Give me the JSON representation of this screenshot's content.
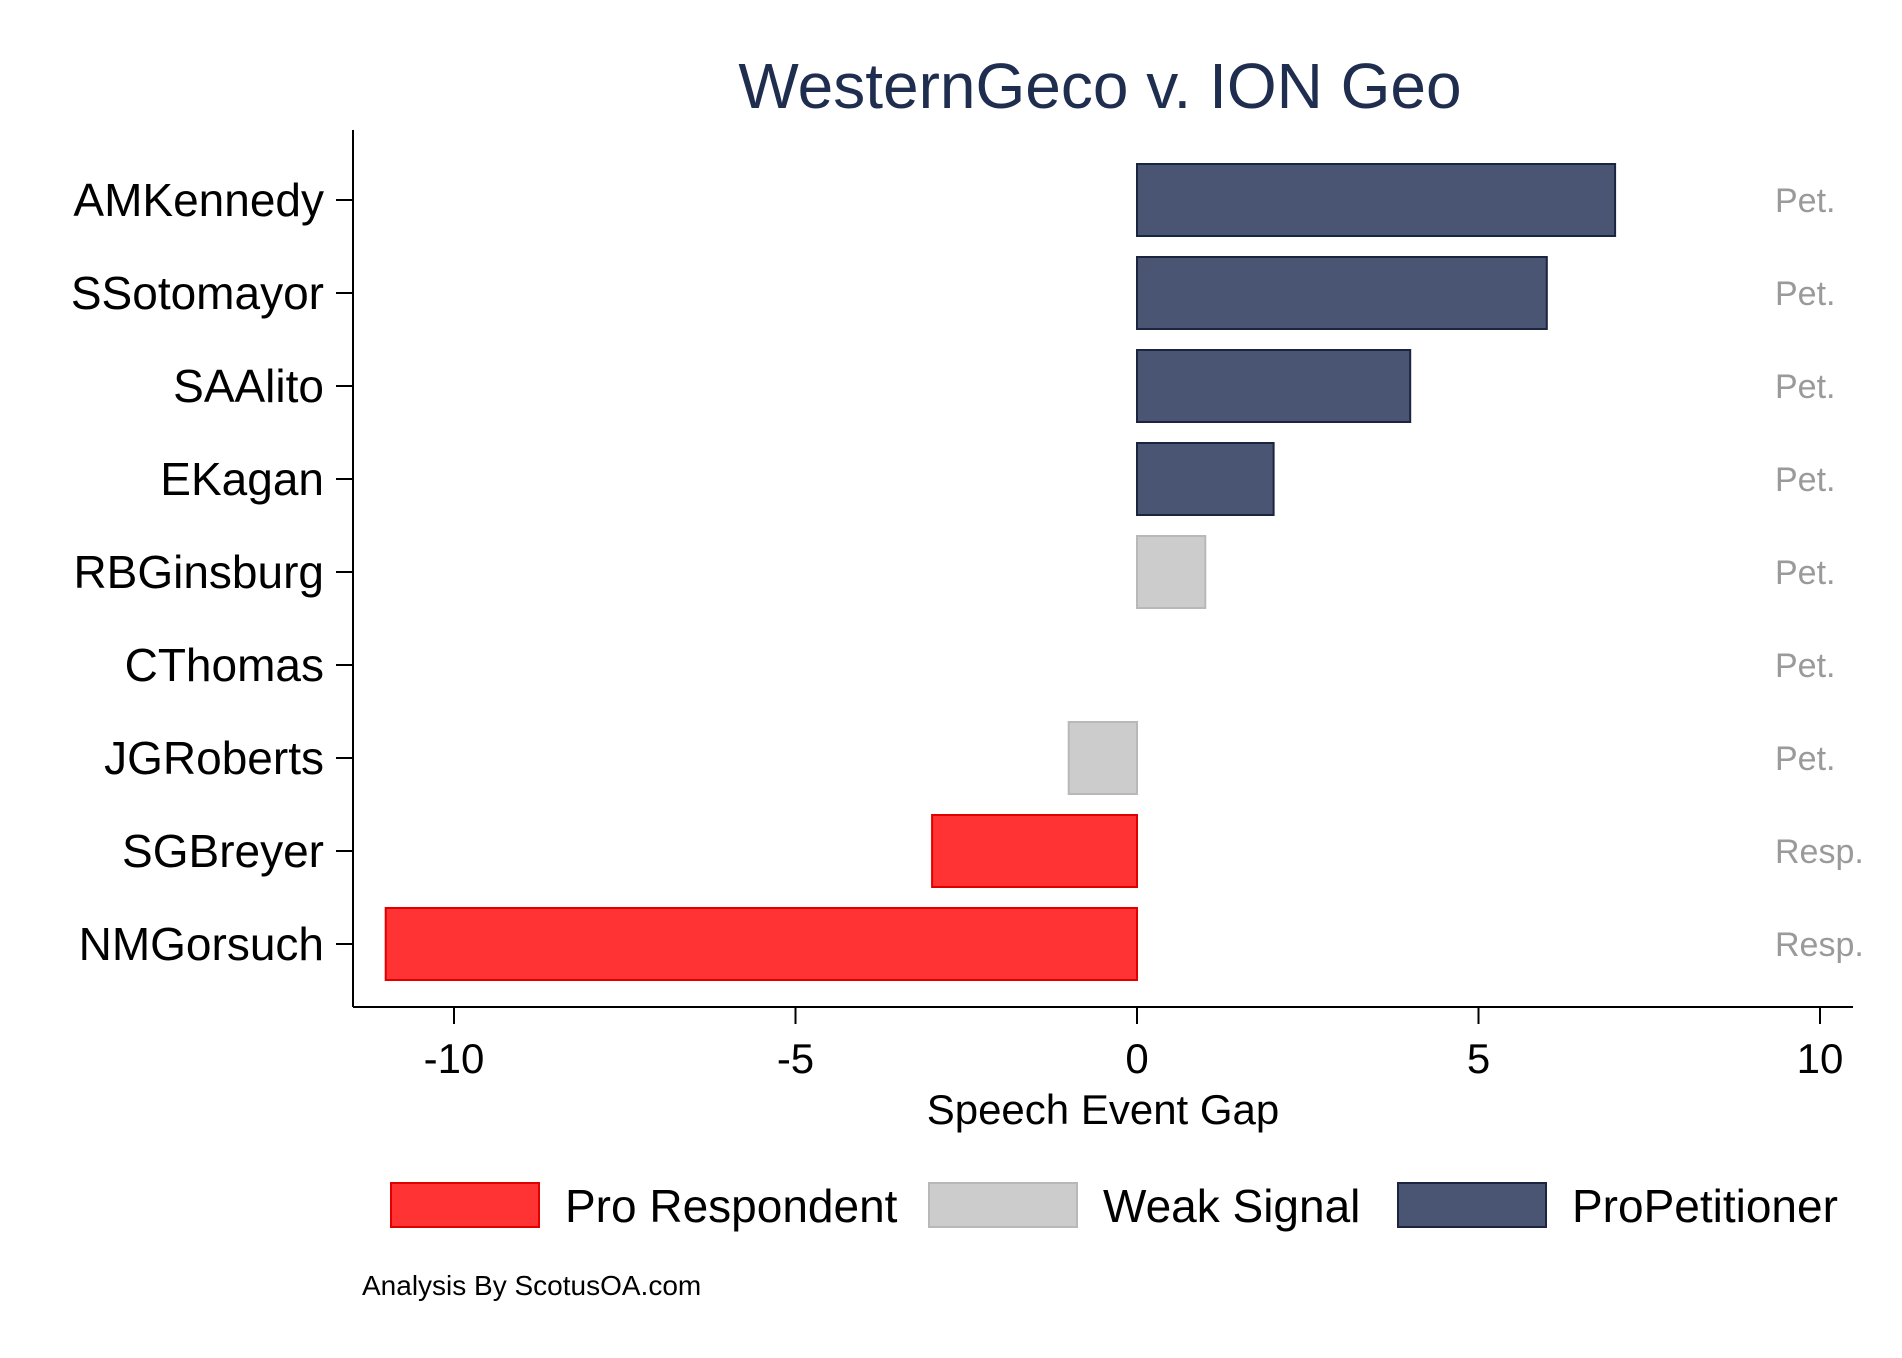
{
  "colors": {
    "pro_respondent": "#ff3333",
    "pro_respondent_edge": "#e00000",
    "weak_signal": "#cccccc",
    "weak_signal_edge": "#b8b8b8",
    "pro_petitioner": "#4a5473",
    "pro_petitioner_edge": "#1c2540",
    "title": "#1f2d4f",
    "side_label": "#9a9a9a"
  },
  "chart_data": {
    "type": "bar",
    "orientation": "horizontal",
    "title": "WesternGeco v. ION Geo",
    "xlabel": "Speech Event Gap",
    "ylabel": "",
    "xlim": [
      -11.5,
      10.5
    ],
    "x_ticks": [
      -10,
      -5,
      0,
      5,
      10
    ],
    "x_tick_labels": [
      "-10",
      "-5",
      "0",
      "5",
      "10"
    ],
    "grid": false,
    "categories": [
      "AMKennedy",
      "SSotomayor",
      "SAAlito",
      "EKagan",
      "RBGinsburg",
      "CThomas",
      "JGRoberts",
      "SGBreyer",
      "NMGorsuch"
    ],
    "values": [
      7,
      6,
      4,
      2,
      1,
      0,
      -1,
      -3,
      -11
    ],
    "signal": [
      "pro_petitioner",
      "pro_petitioner",
      "pro_petitioner",
      "pro_petitioner",
      "weak_signal",
      "weak_signal",
      "weak_signal",
      "pro_respondent",
      "pro_respondent"
    ],
    "side_labels": [
      "Pet.",
      "Pet.",
      "Pet.",
      "Pet.",
      "Pet.",
      "Pet.",
      "Pet.",
      "Resp.",
      "Resp."
    ],
    "legend": {
      "placement": "bottom",
      "entries": [
        {
          "key": "pro_respondent",
          "label": "Pro Respondent"
        },
        {
          "key": "weak_signal",
          "label": "Weak Signal"
        },
        {
          "key": "pro_petitioner",
          "label": "ProPetitioner"
        }
      ]
    }
  },
  "footer": {
    "credit": "Analysis By ScotusOA.com"
  }
}
